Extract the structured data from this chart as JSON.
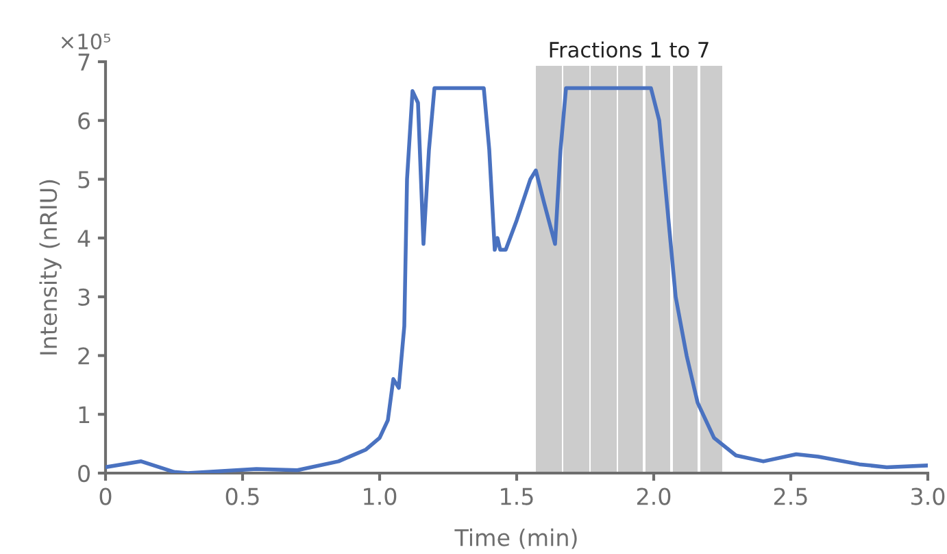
{
  "chart_data": {
    "type": "line",
    "xlabel": "Time (min)",
    "ylabel": "Intensity (nRIU)",
    "annotations": [
      "×10⁵"
    ],
    "xlim": [
      0,
      3
    ],
    "xticks": [
      {
        "value": 0,
        "label": "0"
      },
      0.5,
      {
        "value": 1,
        "label": "1.0"
      },
      1.5,
      {
        "value": 2,
        "label": "2.0"
      },
      2.5,
      {
        "value": 3,
        "label": "3.0"
      }
    ],
    "ylim": [
      0,
      7
    ],
    "yticks": [
      0,
      1,
      2,
      3,
      4,
      5,
      6,
      7
    ],
    "grid": false,
    "legend": false,
    "marker": "none",
    "line_style": "solid",
    "bands": [
      {
        "axis": "x",
        "from": 1.57,
        "to": 1.665,
        "color": "#cccccc",
        "label": "Fractions 1 to 7"
      },
      {
        "axis": "x",
        "from": 1.67,
        "to": 1.765,
        "color": "#cccccc"
      },
      {
        "axis": "x",
        "from": 1.77,
        "to": 1.865,
        "color": "#cccccc"
      },
      {
        "axis": "x",
        "from": 1.87,
        "to": 1.96,
        "color": "#cccccc"
      },
      {
        "axis": "x",
        "from": 1.97,
        "to": 2.06,
        "color": "#cccccc"
      },
      {
        "axis": "x",
        "from": 2.07,
        "to": 2.16,
        "color": "#cccccc"
      },
      {
        "axis": "x",
        "from": 2.17,
        "to": 2.25,
        "color": "#cccccc"
      }
    ],
    "series": [
      {
        "color": "#4a72c0",
        "x": [
          0,
          0.13,
          0.25,
          0.3,
          0.55,
          0.7,
          0.85,
          0.95,
          1.0,
          1.03,
          1.05,
          1.07,
          1.09,
          1.1,
          1.12,
          1.14,
          1.16,
          1.18,
          1.2,
          1.38,
          1.4,
          1.42,
          1.43,
          1.44,
          1.46,
          1.5,
          1.55,
          1.57,
          1.6,
          1.64,
          1.66,
          1.68,
          1.99,
          2.02,
          2.05,
          2.08,
          2.12,
          2.16,
          2.22,
          2.3,
          2.4,
          2.52,
          2.6,
          2.75,
          2.85,
          3.0
        ],
        "values": [
          0.1,
          0.2,
          0.02,
          0.0,
          0.07,
          0.05,
          0.2,
          0.4,
          0.6,
          0.9,
          1.6,
          1.45,
          2.5,
          5.0,
          6.5,
          6.3,
          3.9,
          5.5,
          6.55,
          6.55,
          5.5,
          3.8,
          4.0,
          3.8,
          3.8,
          4.3,
          5.0,
          5.15,
          4.6,
          3.9,
          5.5,
          6.55,
          6.55,
          6.0,
          4.5,
          3.0,
          2.0,
          1.2,
          0.6,
          0.3,
          0.2,
          0.32,
          0.28,
          0.15,
          0.1,
          0.13
        ]
      }
    ]
  }
}
